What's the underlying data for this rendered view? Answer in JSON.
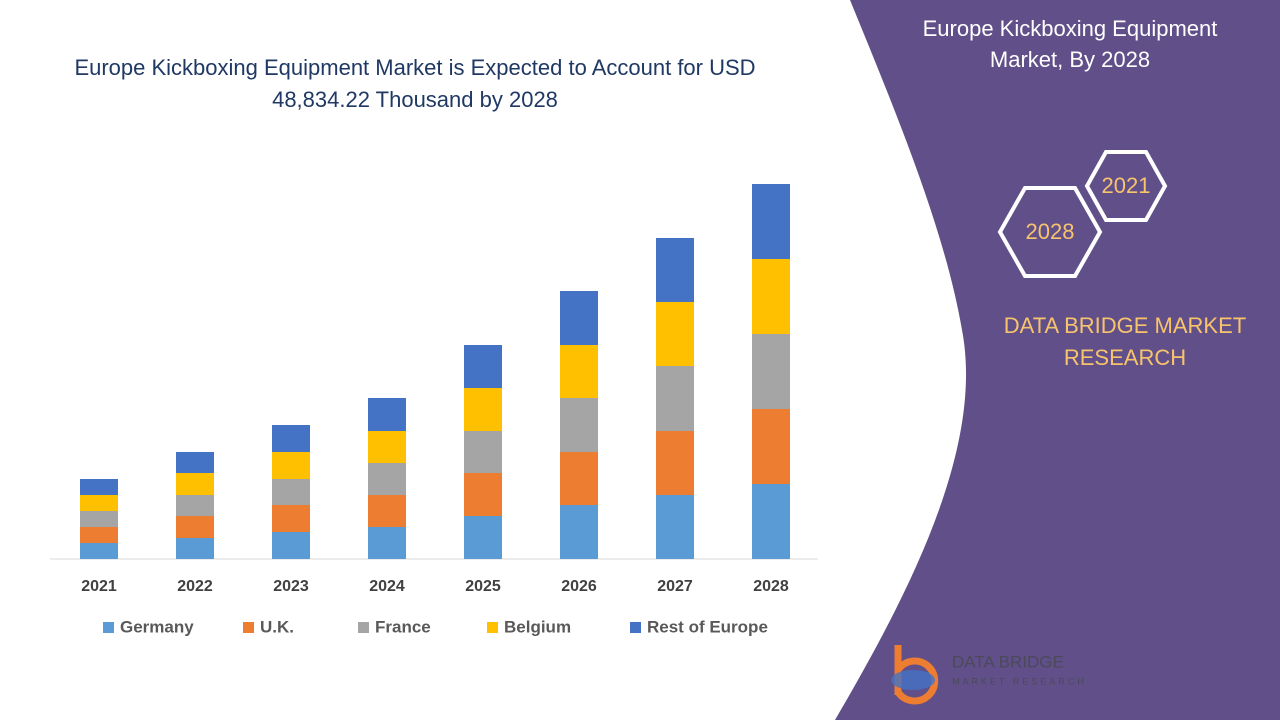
{
  "chart_data": {
    "type": "stacked_bar",
    "title": "Europe Kickboxing Equipment Market is Expected to Account for USD 48,834.22 Thousand by 2028",
    "categories": [
      "2021",
      "2022",
      "2023",
      "2024",
      "2025",
      "2026",
      "2027",
      "2028"
    ],
    "series": [
      {
        "name": "Germany",
        "color": "#5b9bd5",
        "values": [
          16,
          21,
          27,
          32,
          43,
          54,
          64,
          75
        ]
      },
      {
        "name": "U.K.",
        "color": "#ed7d31",
        "values": [
          16,
          22,
          27,
          32,
          43,
          53,
          64,
          75
        ]
      },
      {
        "name": "France",
        "color": "#a5a5a5",
        "values": [
          16,
          21,
          26,
          32,
          42,
          54,
          65,
          75
        ]
      },
      {
        "name": "Belgium",
        "color": "#ffc000",
        "values": [
          16,
          22,
          27,
          32,
          43,
          53,
          64,
          75
        ]
      },
      {
        "name": "Rest of Europe",
        "color": "#4472c4",
        "values": [
          16,
          21,
          27,
          33,
          43,
          54,
          64,
          75
        ]
      }
    ],
    "ylim": [
      0,
      400
    ],
    "legend": "bottom"
  },
  "panel": {
    "title": "Europe Kickboxing Equipment Market, By 2028",
    "hexagons": [
      "2021",
      "2028"
    ],
    "brand": "DATA BRIDGE MARKET RESEARCH",
    "logo": {
      "name": "DATA BRIDGE",
      "tagline": "MARKET RESEARCH"
    }
  }
}
